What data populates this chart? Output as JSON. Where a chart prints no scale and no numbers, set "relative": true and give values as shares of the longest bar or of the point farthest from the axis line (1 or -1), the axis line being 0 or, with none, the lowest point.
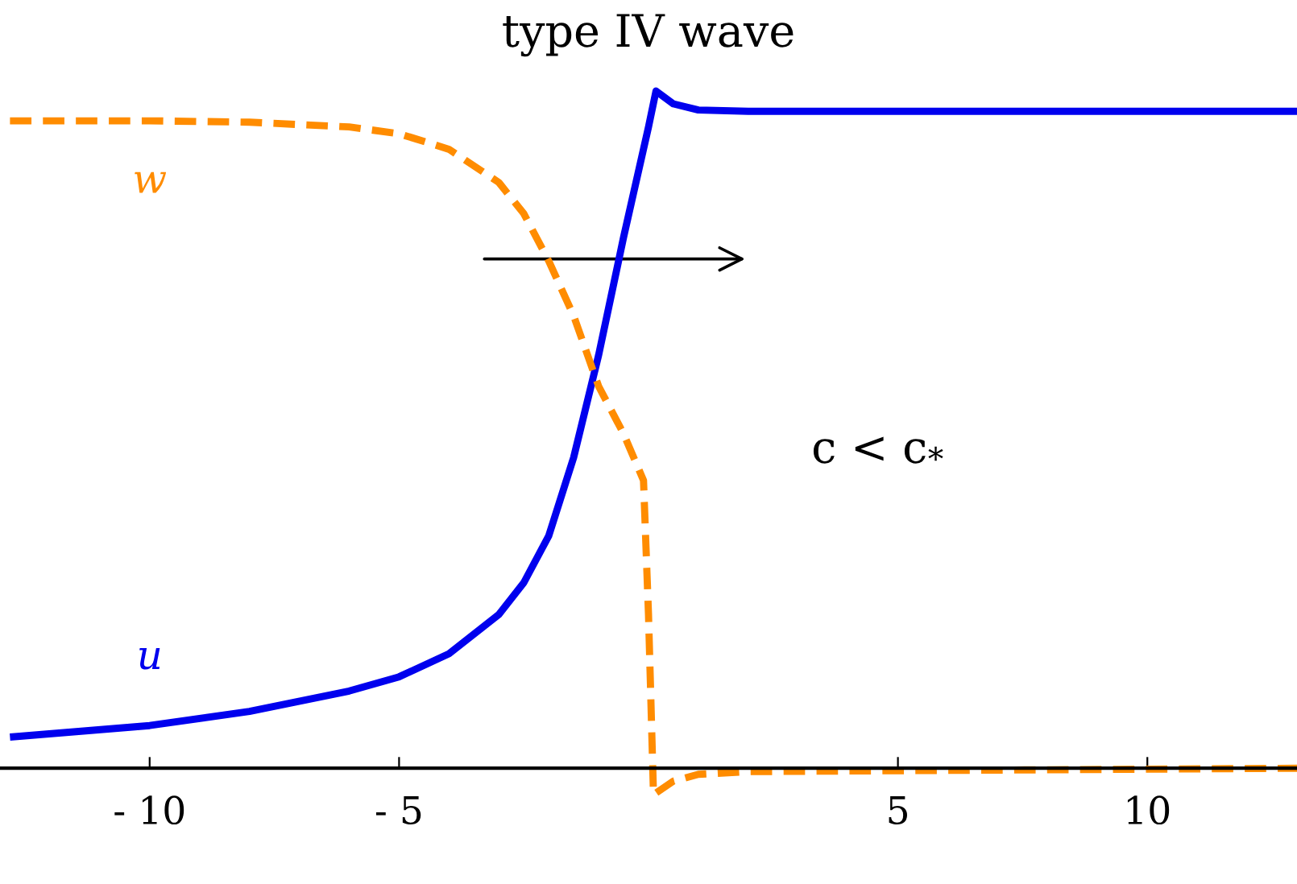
{
  "chart_data": {
    "type": "line",
    "title": "type IV wave",
    "relative": true,
    "xlim": [
      -13,
      13
    ],
    "xticks": [
      {
        "value": -10,
        "label": "- 10"
      },
      {
        "value": -5,
        "label": "- 5"
      },
      5,
      10
    ],
    "tick_labels": "x",
    "grid": false,
    "marker": "none",
    "series": [
      {
        "name": "u",
        "color": "#0000ee",
        "line_style": "solid",
        "x": [
          -12.8,
          -10,
          -8,
          -6,
          -5,
          -4,
          -3,
          -2.5,
          -2,
          -1.5,
          -1,
          -0.5,
          0,
          0.15,
          0.5,
          1,
          2,
          13
        ],
        "values": [
          0.046,
          0.063,
          0.084,
          0.114,
          0.135,
          0.169,
          0.227,
          0.274,
          0.343,
          0.459,
          0.61,
          0.784,
          0.947,
          1.0,
          0.981,
          0.972,
          0.97,
          0.97
        ]
      },
      {
        "name": "w",
        "color": "#ff8c00",
        "line_style": "dashed",
        "x": [
          -12.8,
          -10,
          -8,
          -6,
          -5,
          -4,
          -3,
          -2.5,
          -2,
          -1.5,
          -1,
          -0.5,
          -0.1,
          0,
          0.1,
          0.5,
          1,
          2,
          13
        ],
        "values": [
          0.956,
          0.956,
          0.954,
          0.947,
          0.937,
          0.914,
          0.865,
          0.819,
          0.749,
          0.668,
          0.564,
          0.494,
          0.425,
          0.227,
          -0.039,
          -0.019,
          -0.009,
          -0.005,
          0
        ]
      }
    ],
    "annotations": [
      "c < c$_{*}$"
    ]
  }
}
